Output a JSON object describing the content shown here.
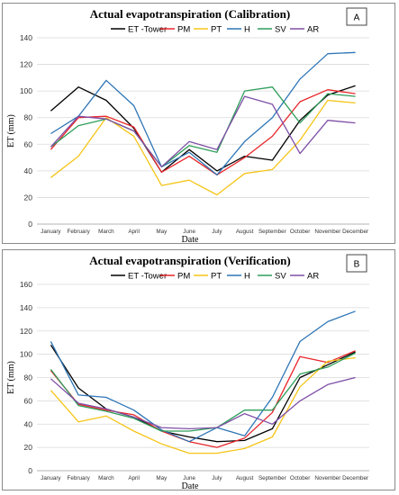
{
  "chart_data": [
    {
      "type": "line",
      "title": "Actual evapotranspiration (Calibration)",
      "panel_label": "A",
      "xlabel": "Date",
      "ylabel": "ET (mm)",
      "ylim": [
        0,
        140
      ],
      "yticks": [
        0,
        20,
        40,
        60,
        80,
        100,
        120,
        140
      ],
      "grid": true,
      "legend": "top",
      "categories": [
        "January",
        "February",
        "March",
        "April",
        "May",
        "June",
        "July",
        "August",
        "September",
        "October",
        "November",
        "December"
      ],
      "series": [
        {
          "name": "ET -Tower",
          "color": "#000000",
          "values": [
            85,
            103,
            93,
            72,
            39,
            56,
            40,
            51,
            48,
            78,
            97,
            104
          ]
        },
        {
          "name": "PM",
          "color": "#e8252a",
          "values": [
            56,
            80,
            81,
            73,
            39,
            51,
            37,
            50,
            66,
            92,
            101,
            98
          ]
        },
        {
          "name": "PT",
          "color": "#f5c518",
          "values": [
            35,
            51,
            80,
            66,
            29,
            33,
            22,
            38,
            41,
            63,
            93,
            91
          ]
        },
        {
          "name": "H",
          "color": "#2e75b6",
          "values": [
            68,
            81,
            108,
            89,
            43,
            54,
            37,
            62,
            80,
            109,
            128,
            129
          ]
        },
        {
          "name": "SV",
          "color": "#2e9e5b",
          "values": [
            58,
            74,
            79,
            70,
            43,
            59,
            54,
            100,
            103,
            76,
            98,
            96
          ]
        },
        {
          "name": "AR",
          "color": "#7f4fa6",
          "values": [
            58,
            81,
            79,
            70,
            43,
            62,
            56,
            96,
            90,
            53,
            78,
            76
          ]
        }
      ]
    },
    {
      "type": "line",
      "title": "Actual evapotranspiration (Verification)",
      "panel_label": "B",
      "xlabel": "Date",
      "ylabel": "ET (mm)",
      "ylim": [
        0,
        160
      ],
      "yticks": [
        0,
        20,
        40,
        60,
        80,
        100,
        120,
        140,
        160
      ],
      "grid": true,
      "legend": "top",
      "categories": [
        "January",
        "February",
        "March",
        "April",
        "May",
        "June",
        "July",
        "August",
        "September",
        "October",
        "November",
        "December"
      ],
      "series": [
        {
          "name": "ET -Tower",
          "color": "#000000",
          "values": [
            108,
            71,
            53,
            46,
            34,
            29,
            25,
            26,
            36,
            80,
            91,
            102
          ]
        },
        {
          "name": "PM",
          "color": "#e8252a",
          "values": [
            86,
            57,
            52,
            48,
            34,
            25,
            20,
            28,
            50,
            98,
            93,
            103
          ]
        },
        {
          "name": "PT",
          "color": "#f5c518",
          "values": [
            69,
            42,
            47,
            34,
            23,
            15,
            15,
            19,
            29,
            72,
            94,
            97
          ]
        },
        {
          "name": "H",
          "color": "#2e75b6",
          "values": [
            111,
            65,
            63,
            52,
            35,
            25,
            37,
            30,
            63,
            111,
            128,
            137
          ]
        },
        {
          "name": "SV",
          "color": "#2e9e5b",
          "values": [
            87,
            56,
            51,
            45,
            34,
            34,
            37,
            52,
            52,
            83,
            89,
            101
          ]
        },
        {
          "name": "AR",
          "color": "#7f4fa6",
          "values": [
            79,
            58,
            53,
            46,
            37,
            36,
            37,
            49,
            40,
            60,
            74,
            80
          ]
        }
      ]
    }
  ]
}
